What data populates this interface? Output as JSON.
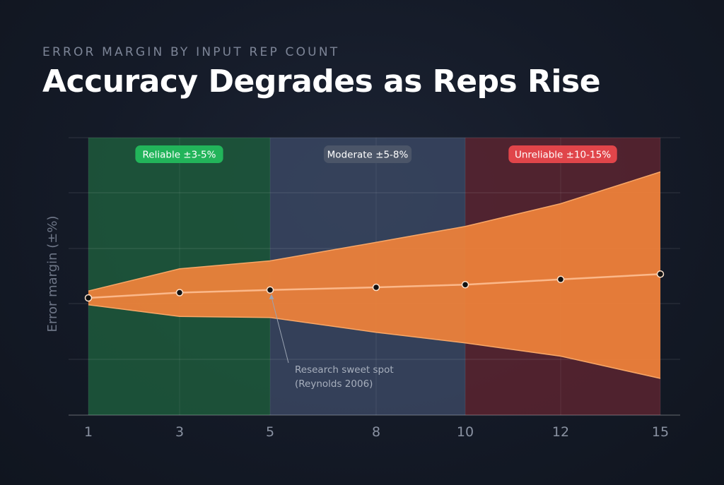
{
  "header": {
    "eyebrow": "ERROR MARGIN BY INPUT REP COUNT",
    "title": "Accuracy Degrades as Reps Rise"
  },
  "colors": {
    "zone_reliable": "#1d5a3c",
    "zone_moderate": "#3a4761",
    "zone_unreliable": "#5a2430",
    "badge_reliable": "#22b45a",
    "badge_moderate": "#4b5568",
    "badge_unreliable": "#e0454a",
    "band": "#f0823a",
    "band_edge": "#f8a767",
    "line": "#fbb88a",
    "marker": "#111111"
  },
  "chart_data": {
    "type": "area",
    "ylabel": "Error margin (±%)",
    "xlabel": "",
    "x_ticks": [
      "1",
      "3",
      "5",
      "8",
      "10",
      "12",
      "15"
    ],
    "x": [
      1,
      3,
      5,
      8,
      10,
      12,
      15
    ],
    "series": [
      {
        "role": "center",
        "values": [
          0.0,
          1.0,
          1.5,
          2.0,
          2.5,
          3.5,
          4.5
        ]
      },
      {
        "role": "upper",
        "values": [
          1.3,
          5.5,
          7.0,
          10.5,
          13.5,
          17.8,
          23.8
        ]
      },
      {
        "role": "lower",
        "values": [
          -1.3,
          -3.5,
          -3.7,
          -6.5,
          -8.5,
          -11.0,
          -15.2
        ]
      }
    ],
    "zones": [
      {
        "label": "Reliable ±3-5%",
        "x_start": 1,
        "x_end": 5,
        "tone": "reliable"
      },
      {
        "label": "Moderate ±5-8%",
        "x_start": 5,
        "x_end": 10,
        "tone": "moderate"
      },
      {
        "label": "Unreliable ±10-15%",
        "x_start": 10,
        "x_end": 15,
        "tone": "unreliable"
      }
    ],
    "annotation": {
      "lines": [
        "Research sweet spot",
        "(Reynolds 2006)"
      ],
      "x": 5,
      "y": 1.5
    },
    "grid": true,
    "y_tick_labels_shown": false
  }
}
